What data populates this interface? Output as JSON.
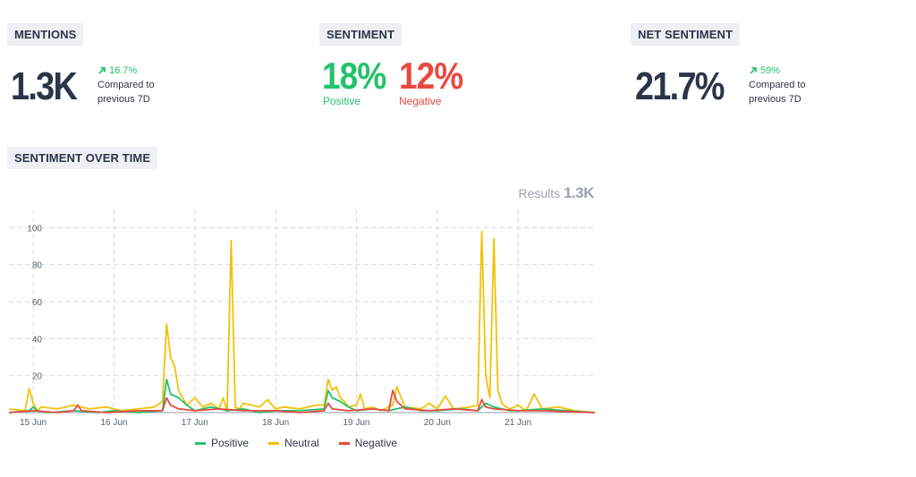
{
  "mentions": {
    "label": "MENTIONS",
    "value": "1.3K",
    "delta": "16.7%",
    "compare_line1": "Compared to",
    "compare_line2": "previous 7D"
  },
  "sentiment": {
    "label": "SENTIMENT",
    "positive_value": "18%",
    "positive_label": "Positive",
    "negative_value": "12%",
    "negative_label": "Negative"
  },
  "net_sentiment": {
    "label": "NET SENTIMENT",
    "value": "21.7%",
    "delta": "59%",
    "compare_line1": "Compared to",
    "compare_line2": "previous 7D"
  },
  "over_time": {
    "label": "SENTIMENT OVER TIME",
    "results_label": "Results",
    "results_value": "1.3K"
  },
  "colors": {
    "positive": "#22c26b",
    "neutral": "#f2c10a",
    "negative": "#e8493f",
    "grid": "#d5d9de",
    "text": "#2b3548"
  },
  "chart_data": {
    "type": "line",
    "ylim": [
      0,
      105
    ],
    "yticks": [
      20,
      40,
      60,
      80,
      100
    ],
    "x_ticks": [
      "15 Jun",
      "16 Jun",
      "17 Jun",
      "18 Jun",
      "19 Jun",
      "20 Jun",
      "21 Jun"
    ],
    "x_start": 14.7,
    "x_end": 21.95,
    "series": [
      {
        "name": "Positive",
        "x": [
          14.7,
          14.95,
          15.0,
          15.05,
          15.2,
          15.5,
          15.8,
          16.0,
          16.3,
          16.6,
          16.65,
          16.7,
          16.8,
          16.9,
          17.0,
          17.2,
          17.4,
          17.6,
          17.8,
          18.0,
          18.3,
          18.6,
          18.65,
          18.7,
          18.8,
          18.9,
          19.0,
          19.2,
          19.4,
          19.6,
          19.8,
          20.0,
          20.3,
          20.5,
          20.6,
          20.7,
          20.8,
          20.9,
          21.0,
          21.3,
          21.6,
          21.95
        ],
        "y": [
          0,
          1,
          3,
          1,
          0,
          1,
          0,
          1,
          0,
          1,
          18,
          10,
          8,
          4,
          1,
          3,
          1,
          2,
          0,
          1,
          1,
          2,
          12,
          8,
          6,
          3,
          1,
          2,
          1,
          3,
          1,
          1,
          2,
          1,
          5,
          3,
          2,
          1,
          1,
          2,
          1,
          0
        ]
      },
      {
        "name": "Neutral",
        "x": [
          14.7,
          14.9,
          14.95,
          15.0,
          15.05,
          15.1,
          15.3,
          15.5,
          15.7,
          15.9,
          16.1,
          16.3,
          16.5,
          16.6,
          16.65,
          16.7,
          16.75,
          16.8,
          16.85,
          16.9,
          17.0,
          17.1,
          17.2,
          17.3,
          17.35,
          17.4,
          17.45,
          17.5,
          17.55,
          17.6,
          17.8,
          17.9,
          18.0,
          18.1,
          18.3,
          18.5,
          18.6,
          18.65,
          18.7,
          18.75,
          18.8,
          18.85,
          18.9,
          19.0,
          19.05,
          19.1,
          19.2,
          19.3,
          19.45,
          19.5,
          19.6,
          19.8,
          19.9,
          20.0,
          20.1,
          20.2,
          20.4,
          20.5,
          20.55,
          20.6,
          20.65,
          20.7,
          20.75,
          20.8,
          20.85,
          20.9,
          21.0,
          21.1,
          21.2,
          21.3,
          21.5,
          21.7,
          21.95
        ],
        "y": [
          2,
          1,
          13,
          5,
          1,
          3,
          2,
          4,
          2,
          3,
          1,
          2,
          3,
          6,
          48,
          30,
          25,
          12,
          8,
          4,
          8,
          3,
          5,
          2,
          8,
          1,
          93,
          3,
          2,
          5,
          3,
          7,
          2,
          3,
          2,
          4,
          4,
          18,
          12,
          14,
          8,
          6,
          3,
          4,
          10,
          2,
          3,
          1,
          4,
          14,
          3,
          2,
          5,
          2,
          9,
          2,
          3,
          4,
          98,
          20,
          8,
          94,
          12,
          5,
          3,
          2,
          4,
          1,
          10,
          2,
          3,
          1,
          0
        ]
      },
      {
        "name": "Negative",
        "x": [
          14.7,
          15.0,
          15.3,
          15.5,
          15.55,
          15.6,
          15.9,
          16.3,
          16.6,
          16.65,
          16.7,
          16.8,
          17.0,
          17.3,
          17.6,
          18.0,
          18.3,
          18.6,
          18.65,
          18.7,
          18.9,
          19.2,
          19.4,
          19.45,
          19.5,
          19.6,
          19.9,
          20.2,
          20.5,
          20.55,
          20.6,
          20.7,
          21.0,
          21.3,
          21.95
        ],
        "y": [
          0,
          1,
          0,
          1,
          4,
          1,
          0,
          1,
          1,
          8,
          4,
          2,
          1,
          2,
          1,
          1,
          0,
          1,
          5,
          2,
          1,
          2,
          1,
          12,
          6,
          2,
          1,
          2,
          1,
          7,
          3,
          2,
          1,
          1,
          0
        ]
      }
    ],
    "legend": [
      "Positive",
      "Neutral",
      "Negative"
    ],
    "legend_position": "bottom",
    "grid": true
  }
}
